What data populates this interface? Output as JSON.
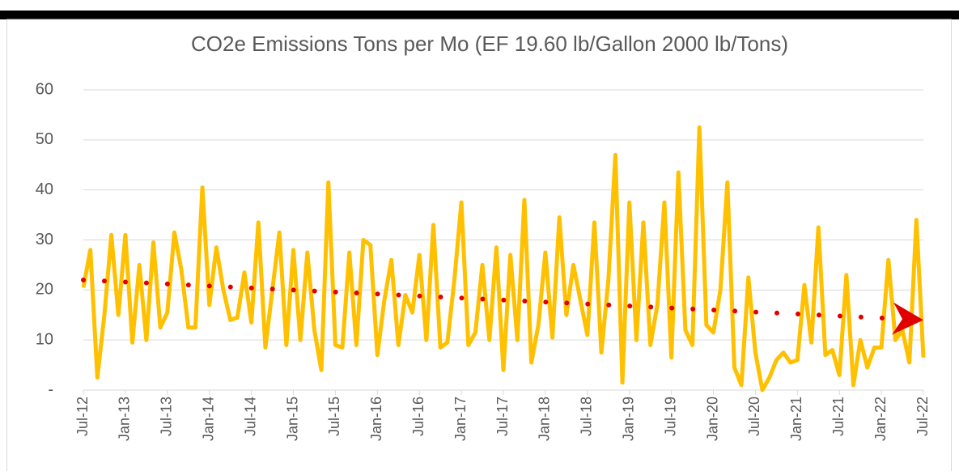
{
  "chart_data": {
    "type": "line",
    "title": "CO2e Emissions  Tons per Mo (EF 19.60 lb/Gallon 2000 lb/Tons)",
    "categories": [
      "Jul-12",
      null,
      null,
      null,
      null,
      null,
      "Jan-13",
      null,
      null,
      null,
      null,
      null,
      "Jul-13",
      null,
      null,
      null,
      null,
      null,
      "Jan-14",
      null,
      null,
      null,
      null,
      null,
      "Jul-14",
      null,
      null,
      null,
      null,
      null,
      "Jan-15",
      null,
      null,
      null,
      null,
      null,
      "Jul-15",
      null,
      null,
      null,
      null,
      null,
      "Jan-16",
      null,
      null,
      null,
      null,
      null,
      "Jul-16",
      null,
      null,
      null,
      null,
      null,
      "Jan-17",
      null,
      null,
      null,
      null,
      null,
      "Jul-17",
      null,
      null,
      null,
      null,
      null,
      "Jan-18",
      null,
      null,
      null,
      null,
      null,
      "Jul-18",
      null,
      null,
      null,
      null,
      null,
      "Jan-19",
      null,
      null,
      null,
      null,
      null,
      "Jul-19",
      null,
      null,
      null,
      null,
      null,
      "Jan-20",
      null,
      null,
      null,
      null,
      null,
      "Jul-20",
      null,
      null,
      null,
      null,
      null,
      "Jan-21",
      null,
      null,
      null,
      null,
      null,
      "Jul-21",
      null,
      null,
      null,
      null,
      null,
      "Jan-22",
      null,
      null,
      null,
      null,
      null,
      "Jul-22"
    ],
    "series": [
      {
        "color": "#ffc000",
        "values": [
          20.5,
          28,
          2.5,
          15,
          31,
          15,
          31,
          9.5,
          25,
          10,
          29.5,
          12.5,
          15.5,
          31.5,
          24,
          12.5,
          12.5,
          40.5,
          17,
          28.5,
          20,
          14,
          14.5,
          23.5,
          13.5,
          33.5,
          8.5,
          20,
          31.5,
          9,
          28,
          10,
          27.5,
          12,
          4,
          41.5,
          9,
          8.5,
          27.5,
          9,
          30,
          29,
          7,
          18,
          26,
          9,
          19,
          15.5,
          27,
          10,
          33,
          8.5,
          9.5,
          22,
          37.5,
          9,
          11.5,
          25,
          10,
          28.5,
          4,
          27,
          10,
          38,
          5.5,
          13,
          27.5,
          10.5,
          34.5,
          15,
          25,
          18,
          11,
          33.5,
          7.5,
          22,
          47,
          1.5,
          37.5,
          10,
          33.5,
          9,
          17,
          37.5,
          6.5,
          43.5,
          12,
          9,
          52.5,
          13,
          11.5,
          20,
          41.5,
          4.5,
          1,
          22.5,
          7.5,
          0,
          2.5,
          6,
          7.5,
          5.5,
          6,
          21,
          9.5,
          32.5,
          7,
          8,
          3,
          23,
          1,
          10,
          4.5,
          8.5,
          8.5,
          26,
          10,
          12,
          5.5,
          34,
          6.5
        ]
      }
    ],
    "trendline": {
      "color": "#e00000",
      "values": [
        22,
        14
      ]
    },
    "ylim": [
      0,
      60
    ],
    "yticks": [
      {
        "value": 0,
        "label": "-"
      },
      10,
      20,
      30,
      40,
      50,
      60
    ],
    "grid": true
  }
}
